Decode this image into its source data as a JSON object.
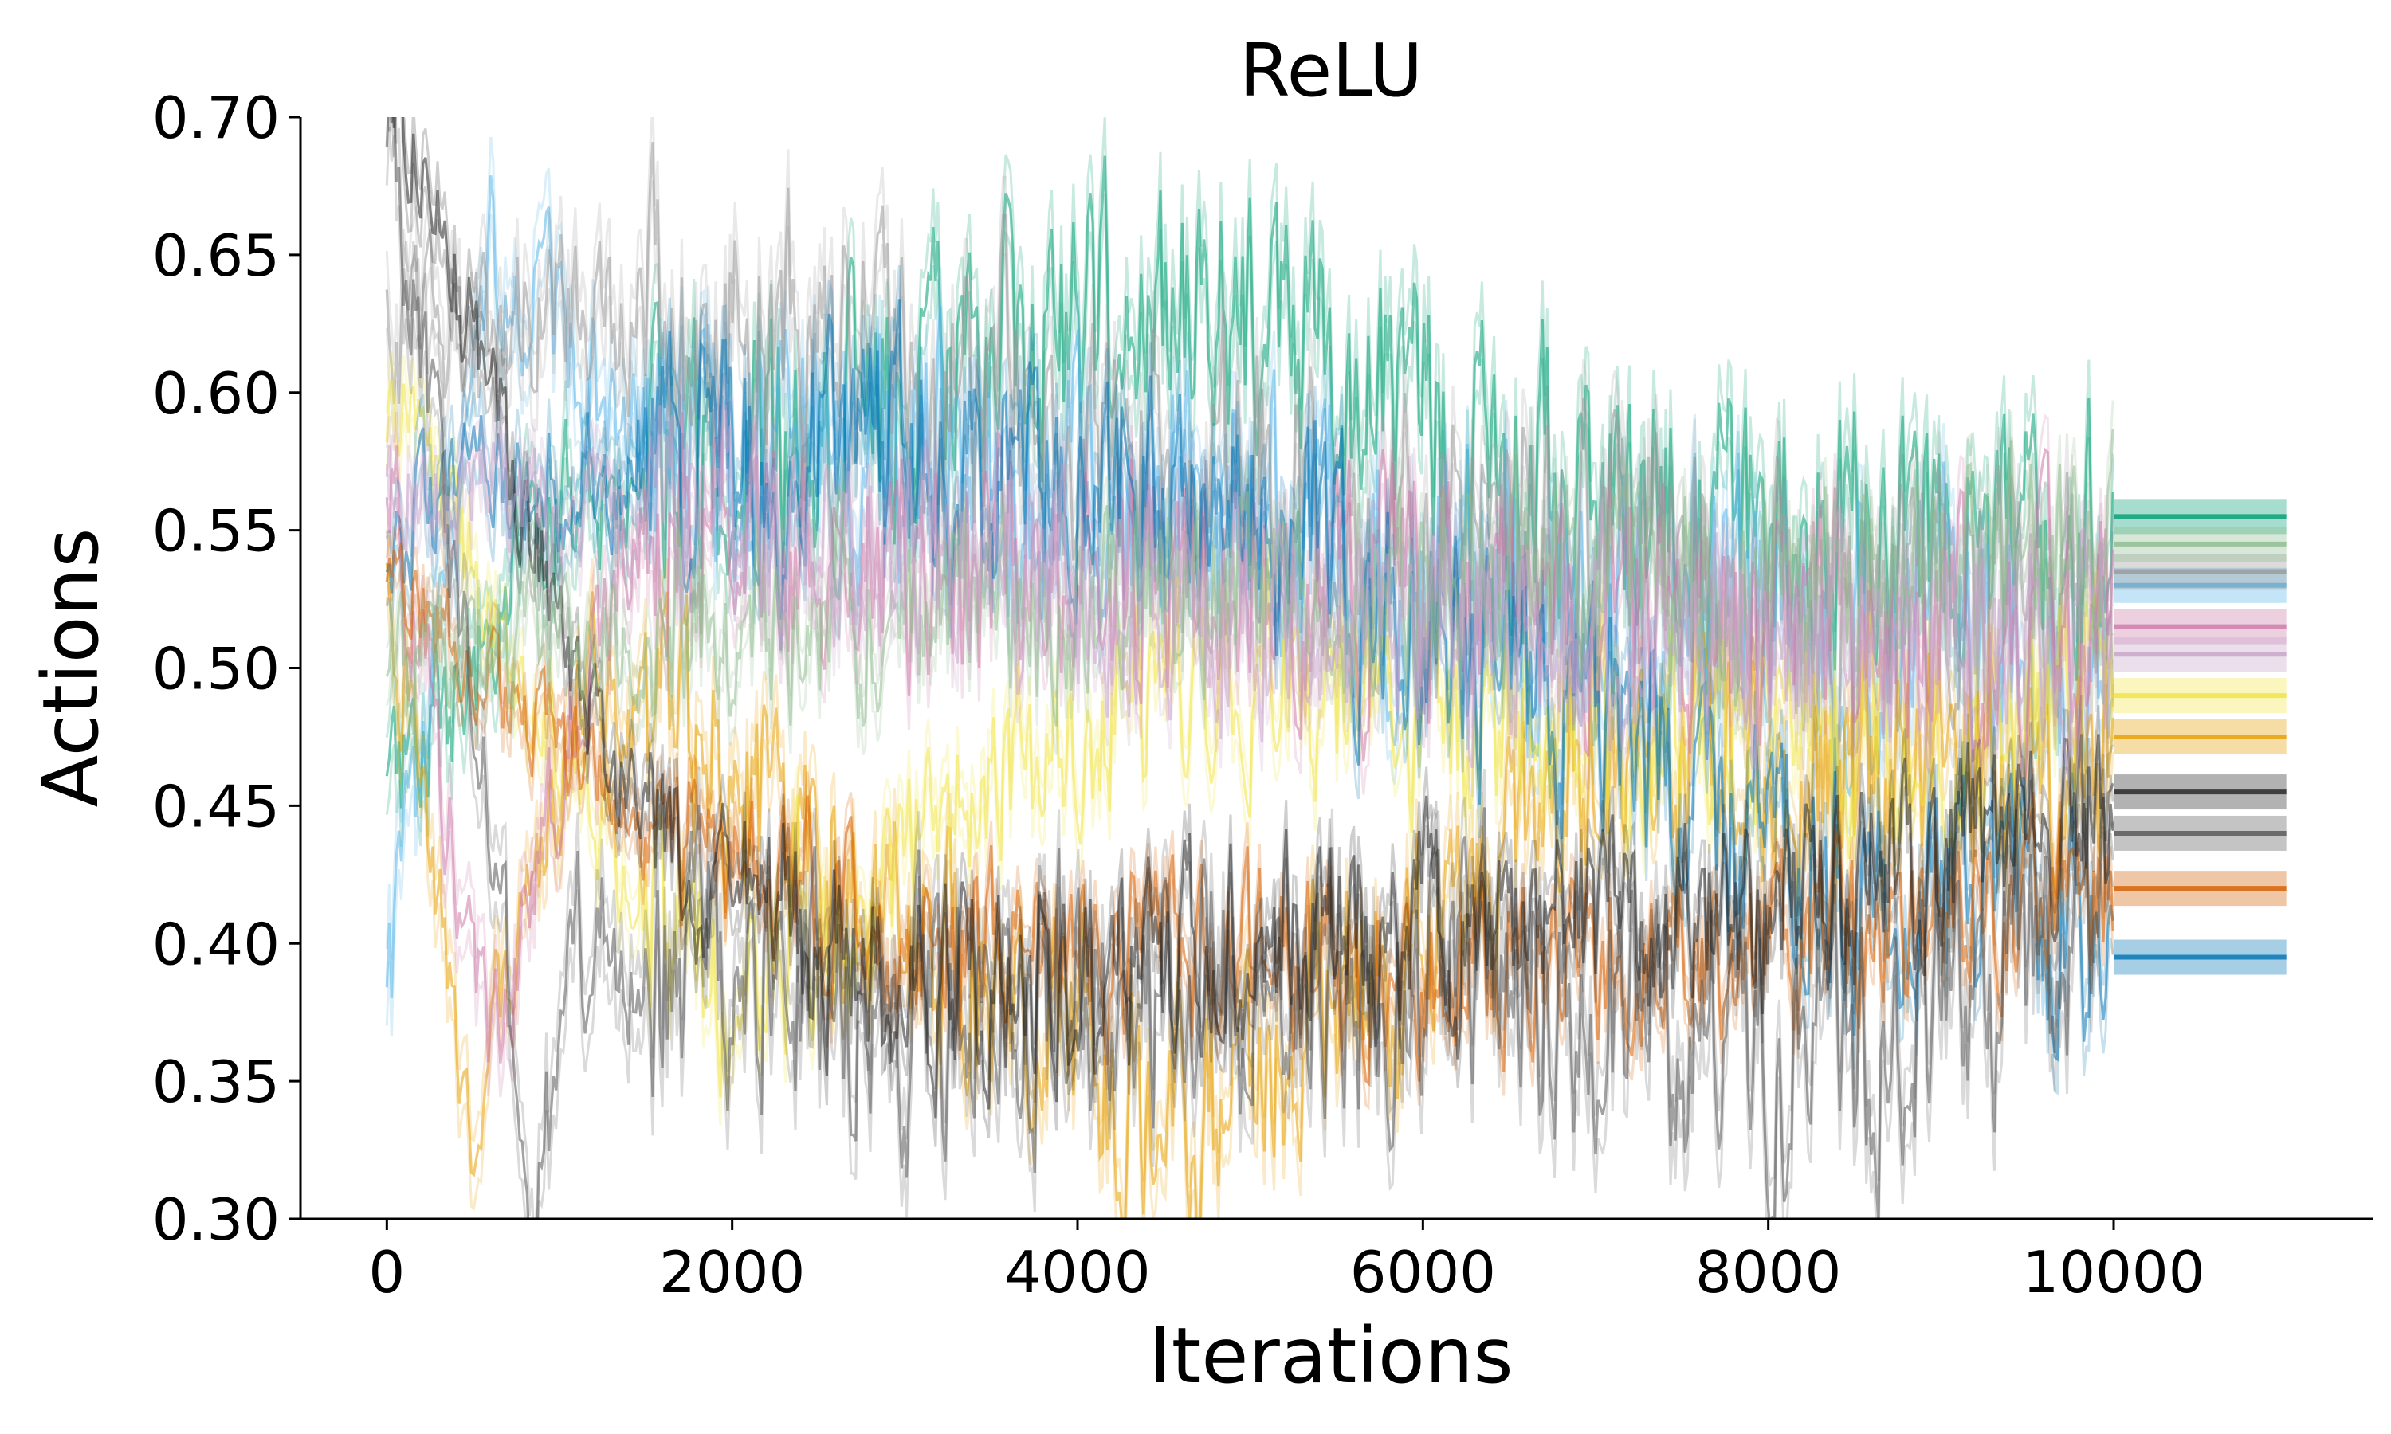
{
  "chart_data": {
    "type": "line",
    "title": "ReLU",
    "xlabel": "Iterations",
    "ylabel": "Actions",
    "xlim": [
      -500,
      11500
    ],
    "ylim": [
      0.3,
      0.7
    ],
    "grid": false,
    "legend": "none",
    "x_ticks": [
      0,
      2000,
      4000,
      6000,
      8000,
      10000
    ],
    "x_tick_labels": [
      "0",
      "2000",
      "4000",
      "6000",
      "8000",
      "10000"
    ],
    "y_ticks": [
      0.3,
      0.35,
      0.4,
      0.45,
      0.5,
      0.55,
      0.6,
      0.65,
      0.7
    ],
    "y_tick_labels": [
      "0.30",
      "0.35",
      "0.40",
      "0.45",
      "0.50",
      "0.55",
      "0.60",
      "0.65",
      "0.70"
    ],
    "series": [
      {
        "color": "#009E73",
        "start": 0.45,
        "anchors": [
          [
            1000,
            0.56
          ],
          [
            4600,
            0.63
          ],
          [
            7000,
            0.56
          ],
          [
            10000,
            0.54
          ]
        ],
        "end": 0.555,
        "noise": 0.04
      },
      {
        "color": "#56B4E9",
        "start": 0.37,
        "anchors": [
          [
            600,
            0.65
          ],
          [
            1500,
            0.58
          ],
          [
            5000,
            0.55
          ],
          [
            7500,
            0.52
          ],
          [
            10000,
            0.5
          ]
        ],
        "end": 0.53,
        "noise": 0.04
      },
      {
        "color": "#999999",
        "start": 0.62,
        "anchors": [
          [
            1700,
            0.63
          ],
          [
            3500,
            0.6
          ],
          [
            6000,
            0.55
          ],
          [
            8000,
            0.53
          ],
          [
            10000,
            0.52
          ]
        ],
        "end": 0.535,
        "noise": 0.04
      },
      {
        "color": "#E69F00",
        "start": 0.52,
        "anchors": [
          [
            500,
            0.34
          ],
          [
            1200,
            0.5
          ],
          [
            4000,
            0.36
          ],
          [
            4500,
            0.33
          ],
          [
            7000,
            0.45
          ],
          [
            10000,
            0.47
          ]
        ],
        "end": 0.475,
        "noise": 0.035
      },
      {
        "color": "#F0E442",
        "start": 0.6,
        "anchors": [
          [
            1200,
            0.44
          ],
          [
            2000,
            0.38
          ],
          [
            4500,
            0.5
          ],
          [
            7000,
            0.47
          ],
          [
            10000,
            0.49
          ]
        ],
        "end": 0.49,
        "noise": 0.03
      },
      {
        "color": "#CC79A7",
        "start": 0.58,
        "anchors": [
          [
            600,
            0.36
          ],
          [
            1400,
            0.55
          ],
          [
            4000,
            0.53
          ],
          [
            7000,
            0.52
          ],
          [
            10000,
            0.51
          ]
        ],
        "end": 0.515,
        "noise": 0.035
      },
      {
        "color": "#0072B2",
        "start": 0.55,
        "anchors": [
          [
            1500,
            0.58
          ],
          [
            4500,
            0.57
          ],
          [
            7000,
            0.48
          ],
          [
            8500,
            0.42
          ],
          [
            10000,
            0.4
          ]
        ],
        "end": 0.395,
        "noise": 0.035
      },
      {
        "color": "#D55E00",
        "start": 0.54,
        "anchors": [
          [
            1500,
            0.44
          ],
          [
            3000,
            0.4
          ],
          [
            6000,
            0.39
          ],
          [
            8000,
            0.4
          ],
          [
            10000,
            0.42
          ]
        ],
        "end": 0.42,
        "noise": 0.025
      },
      {
        "color": "#555555",
        "start": 0.7,
        "anchors": [
          [
            700,
            0.4
          ],
          [
            850,
            0.3
          ],
          [
            1100,
            0.4
          ],
          [
            3000,
            0.38
          ],
          [
            6000,
            0.39
          ],
          [
            8500,
            0.36
          ],
          [
            10000,
            0.42
          ]
        ],
        "end": 0.44,
        "noise": 0.04
      },
      {
        "color": "#222222",
        "start": 0.72,
        "anchors": [
          [
            1300,
            0.46
          ],
          [
            3000,
            0.38
          ],
          [
            5000,
            0.4
          ],
          [
            8000,
            0.41
          ],
          [
            10000,
            0.45
          ]
        ],
        "end": 0.455,
        "noise": 0.03
      },
      {
        "color": "#8FBC8F",
        "start": 0.5,
        "anchors": [
          [
            2000,
            0.52
          ],
          [
            5000,
            0.53
          ],
          [
            8000,
            0.53
          ],
          [
            10000,
            0.545
          ]
        ],
        "end": 0.545,
        "noise": 0.03
      },
      {
        "color": "#C8A2C8",
        "start": 0.57,
        "anchors": [
          [
            2000,
            0.55
          ],
          [
            6000,
            0.51
          ],
          [
            10000,
            0.505
          ]
        ],
        "end": 0.505,
        "noise": 0.03
      }
    ]
  }
}
